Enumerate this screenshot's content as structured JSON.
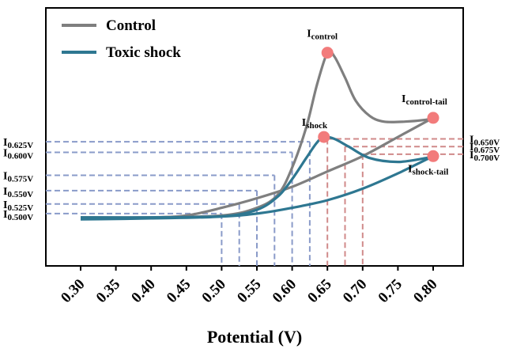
{
  "chart_data": {
    "type": "line",
    "xlabel": "Potential (V)",
    "ylabel": "",
    "xlim": [
      0.25,
      0.83
    ],
    "ylim": [
      0,
      1
    ],
    "xticks": [
      "0.30",
      "0.35",
      "0.40",
      "0.45",
      "0.50",
      "0.55",
      "0.60",
      "0.65",
      "0.70",
      "0.75",
      "0.80"
    ],
    "grid": false,
    "legend_position": "top-left",
    "series": [
      {
        "name": "Control",
        "color": "#7f7f7f",
        "forward": [
          [
            0.3,
            0.025
          ],
          [
            0.4,
            0.03
          ],
          [
            0.5,
            0.04
          ],
          [
            0.55,
            0.08
          ],
          [
            0.58,
            0.15
          ],
          [
            0.6,
            0.29
          ],
          [
            0.62,
            0.5
          ],
          [
            0.635,
            0.72
          ],
          [
            0.65,
            0.89
          ],
          [
            0.66,
            0.87
          ],
          [
            0.675,
            0.76
          ],
          [
            0.69,
            0.64
          ],
          [
            0.71,
            0.56
          ],
          [
            0.73,
            0.53
          ],
          [
            0.76,
            0.53
          ],
          [
            0.79,
            0.54
          ],
          [
            0.8,
            0.55
          ]
        ],
        "reverse": [
          [
            0.8,
            0.55
          ],
          [
            0.75,
            0.45
          ],
          [
            0.7,
            0.35
          ],
          [
            0.65,
            0.27
          ],
          [
            0.6,
            0.19
          ],
          [
            0.55,
            0.13
          ],
          [
            0.5,
            0.08
          ],
          [
            0.45,
            0.04
          ],
          [
            0.4,
            0.03
          ],
          [
            0.3,
            0.03
          ]
        ]
      },
      {
        "name": "Toxic shock",
        "color": "#2e7791",
        "forward": [
          [
            0.3,
            0.02
          ],
          [
            0.4,
            0.025
          ],
          [
            0.5,
            0.035
          ],
          [
            0.55,
            0.07
          ],
          [
            0.58,
            0.14
          ],
          [
            0.6,
            0.23
          ],
          [
            0.62,
            0.34
          ],
          [
            0.635,
            0.42
          ],
          [
            0.645,
            0.45
          ],
          [
            0.66,
            0.44
          ],
          [
            0.68,
            0.4
          ],
          [
            0.71,
            0.34
          ],
          [
            0.75,
            0.32
          ],
          [
            0.79,
            0.34
          ],
          [
            0.8,
            0.35
          ]
        ],
        "reverse": [
          [
            0.8,
            0.35
          ],
          [
            0.75,
            0.26
          ],
          [
            0.7,
            0.18
          ],
          [
            0.65,
            0.12
          ],
          [
            0.6,
            0.08
          ],
          [
            0.55,
            0.05
          ],
          [
            0.5,
            0.035
          ],
          [
            0.4,
            0.03
          ],
          [
            0.3,
            0.03
          ]
        ]
      }
    ],
    "markers": [
      {
        "label": "I",
        "sub": "control",
        "x": 0.65,
        "y": 0.89,
        "color": "#f27b7b"
      },
      {
        "label": "I",
        "sub": "control-tail",
        "x": 0.8,
        "y": 0.55,
        "color": "#f27b7b"
      },
      {
        "label": "I",
        "sub": "shock",
        "x": 0.645,
        "y": 0.45,
        "color": "#f27b7b"
      },
      {
        "label": "I",
        "sub": "shock-tail",
        "x": 0.8,
        "y": 0.35,
        "color": "#f27b7b"
      }
    ],
    "annotations_left": [
      {
        "label": "I",
        "sub": "0.625V",
        "x": 0.625,
        "y": 0.425
      },
      {
        "label": "I",
        "sub": "0.600V",
        "x": 0.6,
        "y": 0.37
      },
      {
        "label": "I",
        "sub": "0.575V",
        "x": 0.575,
        "y": 0.25
      },
      {
        "label": "I",
        "sub": "0.550V",
        "x": 0.55,
        "y": 0.17
      },
      {
        "label": "I",
        "sub": "0.525V",
        "x": 0.525,
        "y": 0.1
      },
      {
        "label": "I",
        "sub": "0.500V",
        "x": 0.5,
        "y": 0.05
      }
    ],
    "annotations_right": [
      {
        "label": "I",
        "sub": "0.650V",
        "x": 0.65,
        "y": 0.44
      },
      {
        "label": "I",
        "sub": "0.675V",
        "x": 0.675,
        "y": 0.4
      },
      {
        "label": "I",
        "sub": "0.700V",
        "x": 0.7,
        "y": 0.36
      }
    ],
    "left_guide_color": "#8a9bc9",
    "right_guide_color": "#d08a8a"
  }
}
